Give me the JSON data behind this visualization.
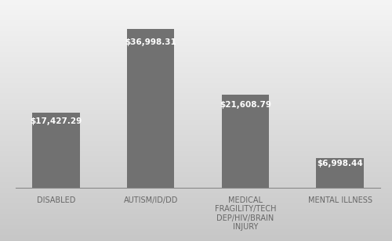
{
  "categories": [
    "DISABLED",
    "AUTISM/ID/DD",
    "MEDICAL\nFRAGILITY/TECH\nDEP/HIV/BRAIN\nINJURY",
    "MENTAL ILLNESS"
  ],
  "values": [
    17427.29,
    36998.31,
    21608.79,
    6998.44
  ],
  "labels": [
    "$17,427.29",
    "$36,998.31",
    "$21,608.79",
    "$6,998.44"
  ],
  "bar_color": "#717171",
  "background_top": "#f0f0f0",
  "background_bottom": "#c8c8c8",
  "label_color": "#ffffff",
  "tick_label_color": "#666666",
  "label_fontsize": 7.5,
  "tick_fontsize": 7,
  "ylim": [
    0,
    42000
  ],
  "bar_width": 0.5
}
